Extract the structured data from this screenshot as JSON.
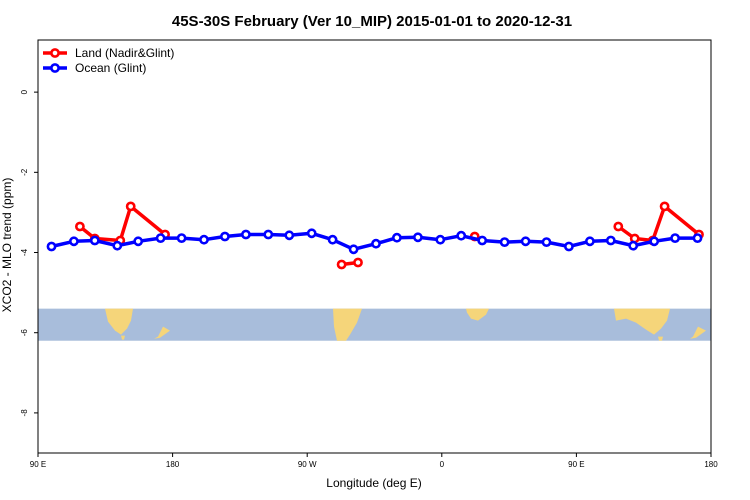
{
  "chart_data": {
    "type": "line",
    "title": "45S-30S February (Ver 10_MIP)   2015-01-01 to 2020-12-31",
    "xlabel": "Longitude (deg E)",
    "ylabel": "XCO2 - MLO trend (ppm)",
    "xlim": [
      90,
      540
    ],
    "ylim": [
      -9.0,
      1.3
    ],
    "x_ticks": [
      {
        "value": 90,
        "label": "90 E"
      },
      {
        "value": 180,
        "label": "180"
      },
      {
        "value": 270,
        "label": "90 W"
      },
      {
        "value": 360,
        "label": "0"
      },
      {
        "value": 450,
        "label": "90 E"
      },
      {
        "value": 540,
        "label": "180"
      }
    ],
    "y_ticks": [
      {
        "value": 0,
        "label": "0"
      },
      {
        "value": -2,
        "label": "-2"
      },
      {
        "value": -4,
        "label": "-4"
      },
      {
        "value": -6,
        "label": "-6"
      },
      {
        "value": -8,
        "label": "-8"
      }
    ],
    "map_band": {
      "y_top": -5.4,
      "y_bottom": -6.2,
      "ocean_color": "#a8bddb",
      "land_color": "#f5d57a"
    },
    "legend_position": "top-left",
    "series": [
      {
        "name": "Land (Nadir&Glint)",
        "color": "#ff0000",
        "segments": [
          {
            "x": [
              118,
              128,
              145,
              152,
              175
            ],
            "y": [
              -3.35,
              -3.65,
              -3.7,
              -2.85,
              -3.55
            ]
          },
          {
            "x": [
              293,
              304
            ],
            "y": [
              -4.3,
              -4.25
            ]
          },
          {
            "x": [
              382
            ],
            "y": [
              -3.6
            ]
          },
          {
            "x": [
              478,
              489,
              501,
              509,
              532
            ],
            "y": [
              -3.35,
              -3.65,
              -3.7,
              -2.85,
              -3.55
            ]
          }
        ]
      },
      {
        "name": "Ocean (Glint)",
        "color": "#0000ff",
        "segments": [
          {
            "x": [
              99,
              114,
              128,
              143,
              157,
              172,
              186,
              201,
              215,
              229,
              244,
              258,
              273,
              287,
              301,
              316,
              330,
              344,
              359,
              373,
              387,
              402,
              416,
              430,
              445,
              459,
              473,
              488,
              502,
              516,
              531
            ],
            "y": [
              -3.85,
              -3.72,
              -3.7,
              -3.83,
              -3.72,
              -3.64,
              -3.64,
              -3.68,
              -3.6,
              -3.55,
              -3.55,
              -3.57,
              -3.52,
              -3.68,
              -3.92,
              -3.78,
              -3.63,
              -3.62,
              -3.68,
              -3.58,
              -3.7,
              -3.74,
              -3.72,
              -3.74,
              -3.85,
              -3.72,
              -3.7,
              -3.83,
              -3.72,
              -3.64,
              -3.64
            ]
          }
        ]
      }
    ]
  }
}
